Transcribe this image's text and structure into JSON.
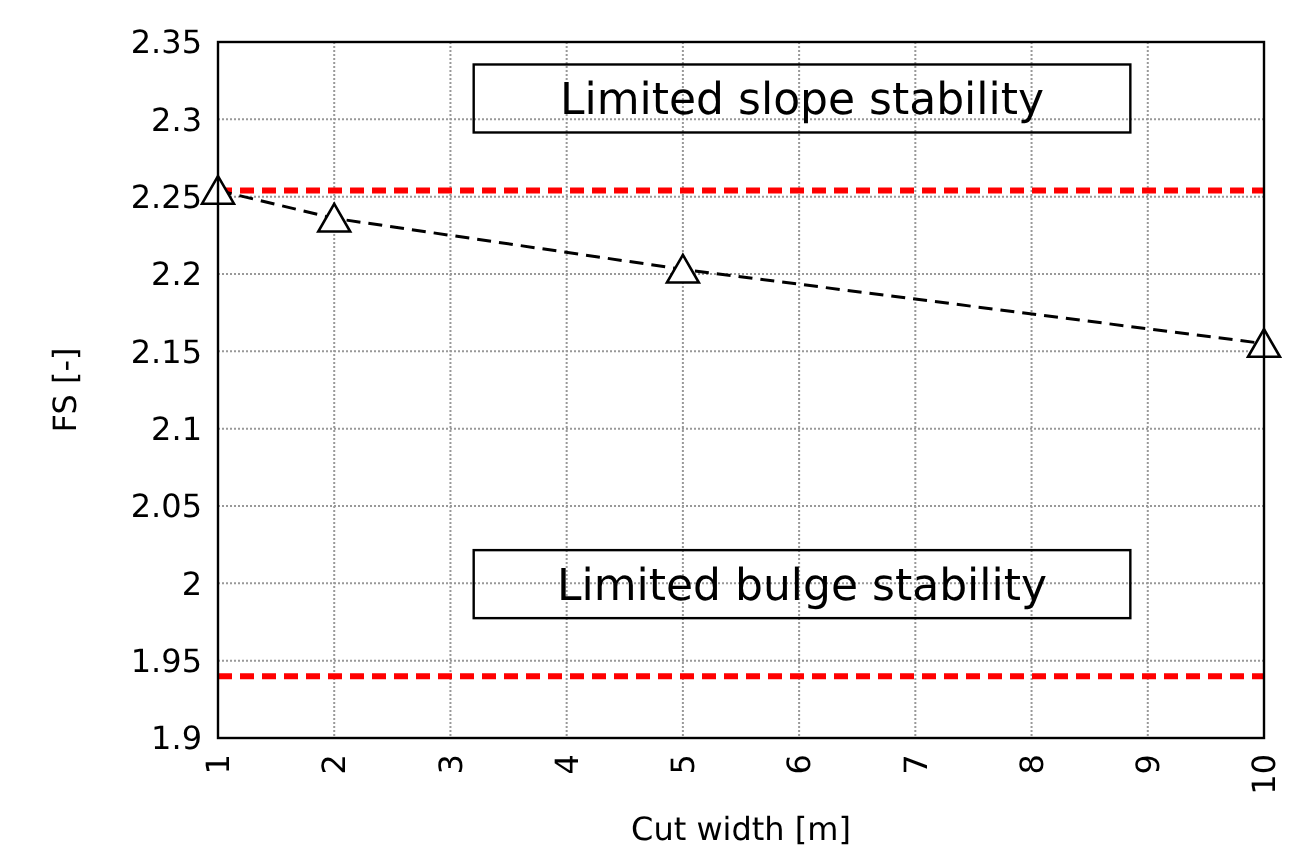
{
  "chart_data": {
    "type": "line",
    "xlabel": "Cut width [m]",
    "ylabel": "FS [-]",
    "xlim": [
      1,
      10
    ],
    "xticks": [
      1,
      2,
      3,
      4,
      5,
      6,
      7,
      8,
      9,
      10
    ],
    "ylim": [
      1.9,
      2.35
    ],
    "yticks": [
      1.9,
      1.95,
      2,
      2.05,
      2.1,
      2.15,
      2.2,
      2.25,
      2.3,
      2.35
    ],
    "grid": true,
    "marker": "triangle",
    "line_style": "dashed",
    "series": [
      {
        "color": "#000000",
        "x": [
          1,
          2,
          5,
          10
        ],
        "values": [
          2.254,
          2.236,
          2.203,
          2.155
        ]
      }
    ],
    "ref_lines": [
      {
        "axis": "y",
        "value": 2.254,
        "label": "Limited slope stability",
        "color": "#ff0000",
        "line_style": "dashed"
      },
      {
        "axis": "y",
        "value": 1.94,
        "label": "Limited bulge stability",
        "color": "#ff0000",
        "line_style": "dashed"
      }
    ]
  }
}
